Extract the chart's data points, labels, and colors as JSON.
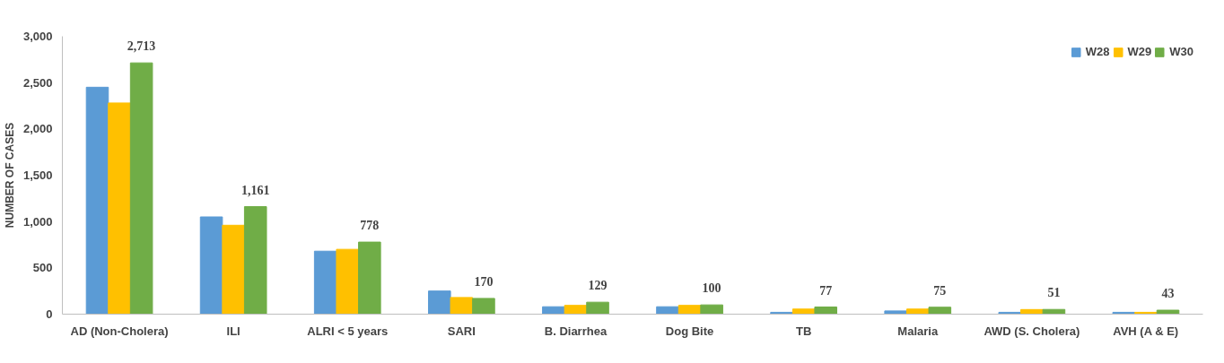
{
  "chart_data": {
    "type": "bar",
    "ylabel": "NUMBER OF CASES",
    "categories": [
      "AD (Non-Cholera)",
      "ILI",
      "ALRI < 5 years",
      "SARI",
      "B. Diarrhea",
      "Dog Bite",
      "TB",
      "Malaria",
      "AWD (S. Cholera)",
      "AVH (A & E)"
    ],
    "series": [
      {
        "name": "W28",
        "color": "#5b9bd5",
        "values": [
          2450,
          1050,
          680,
          250,
          80,
          80,
          20,
          35,
          20,
          20
        ]
      },
      {
        "name": "W29",
        "color": "#ffc000",
        "values": [
          2280,
          960,
          700,
          180,
          95,
          95,
          55,
          55,
          50,
          20
        ]
      },
      {
        "name": "W30",
        "color": "#70ad47",
        "values": [
          2713,
          1161,
          778,
          170,
          129,
          100,
          77,
          75,
          51,
          43
        ],
        "value_labels": [
          "2,713",
          "1,161",
          "778",
          "170",
          "129",
          "100",
          "77",
          "75",
          "51",
          "43"
        ]
      }
    ],
    "ylim": [
      0,
      3000
    ],
    "yticks": [
      {
        "value": 0,
        "label": "0"
      },
      {
        "value": 500,
        "label": "500"
      },
      {
        "value": 1000,
        "label": "1,000"
      },
      {
        "value": 1500,
        "label": "1,500"
      },
      {
        "value": 2000,
        "label": "2,000"
      },
      {
        "value": 2500,
        "label": "2,500"
      },
      {
        "value": 3000,
        "label": "3,000"
      }
    ],
    "grid": false,
    "legend": "top right"
  }
}
